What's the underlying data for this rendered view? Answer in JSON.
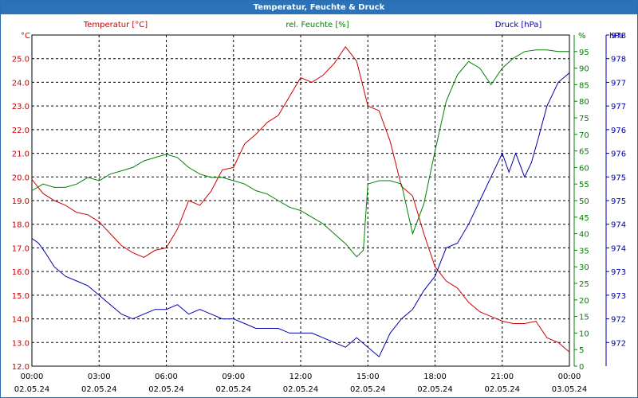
{
  "window": {
    "title": "Temperatur, Feuchte & Druck"
  },
  "colors": {
    "temperature": "#cc0000",
    "humidity": "#008000",
    "pressure": "#0000aa",
    "grid": "#000000",
    "titlebar": "#2b72b8"
  },
  "chart_data": {
    "type": "line",
    "grid": true,
    "legend": "top",
    "x": {
      "range": [
        "02.05.24 00:00",
        "03.05.24 00:00"
      ],
      "ticks": [
        {
          "time": "00:00",
          "date": "02.05.24"
        },
        {
          "time": "03:00",
          "date": "02.05.24"
        },
        {
          "time": "06:00",
          "date": "02.05.24"
        },
        {
          "time": "09:00",
          "date": "02.05.24"
        },
        {
          "time": "12:00",
          "date": "02.05.24"
        },
        {
          "time": "15:00",
          "date": "02.05.24"
        },
        {
          "time": "18:00",
          "date": "02.05.24"
        },
        {
          "time": "21:00",
          "date": "02.05.24"
        },
        {
          "time": "00:00",
          "date": "03.05.24"
        }
      ]
    },
    "axes": {
      "left": {
        "unit": "°C",
        "min": 12.0,
        "max": 26.0,
        "ticks": [
          "12.0",
          "13.0",
          "14.0",
          "15.0",
          "16.0",
          "17.0",
          "18.0",
          "19.0",
          "20.0",
          "21.0",
          "22.0",
          "23.0",
          "24.0",
          "25.0"
        ]
      },
      "right1": {
        "unit": "%",
        "min": 0,
        "max": 100,
        "ticks": [
          "0",
          "5",
          "10",
          "15",
          "20",
          "25",
          "30",
          "35",
          "40",
          "45",
          "50",
          "55",
          "60",
          "65",
          "70",
          "75",
          "80",
          "85",
          "90",
          "95"
        ]
      },
      "right2": {
        "unit": "hPa",
        "min": 971.5,
        "max": 978.5,
        "ticks": [
          "972",
          "972",
          "973",
          "973",
          "974",
          "974",
          "975",
          "975",
          "976",
          "976",
          "977",
          "977",
          "978",
          "978"
        ]
      }
    },
    "series": [
      {
        "name": "Temperatur [°C]",
        "axis": "left",
        "color": "#cc0000",
        "x": [
          0,
          0.25,
          0.5,
          1,
          1.5,
          2,
          2.5,
          3,
          3.5,
          4,
          4.5,
          5,
          5.5,
          6,
          6.5,
          7,
          7.5,
          8,
          8.5,
          9,
          9.5,
          10,
          10.5,
          11,
          11.5,
          12,
          12.5,
          13,
          13.5,
          14,
          14.5,
          15,
          15.5,
          16,
          16.5,
          17,
          17.5,
          18,
          18.5,
          19,
          19.5,
          20,
          20.5,
          21,
          21.5,
          22,
          22.5,
          23,
          23.5,
          24
        ],
        "y": [
          19.9,
          19.6,
          19.3,
          19.0,
          18.8,
          18.5,
          18.4,
          18.1,
          17.6,
          17.1,
          16.8,
          16.6,
          16.9,
          17.0,
          17.8,
          19.0,
          18.8,
          19.4,
          20.3,
          20.4,
          21.4,
          21.8,
          22.3,
          22.6,
          23.4,
          24.2,
          24.0,
          24.3,
          24.8,
          25.5,
          24.9,
          23.0,
          22.8,
          21.5,
          19.6,
          19.2,
          17.6,
          16.2,
          15.6,
          15.3,
          14.7,
          14.3,
          14.1,
          13.9,
          13.8,
          13.8,
          13.9,
          13.2,
          13.0,
          12.6
        ]
      },
      {
        "name": "rel. Feuchte [%]",
        "axis": "right1",
        "color": "#008000",
        "x": [
          0,
          0.5,
          1,
          1.5,
          2,
          2.5,
          3,
          3.5,
          4,
          4.5,
          5,
          5.5,
          6,
          6.5,
          7,
          7.5,
          8,
          8.5,
          9,
          9.5,
          10,
          10.5,
          11,
          11.5,
          12,
          12.5,
          13,
          13.5,
          14,
          14.5,
          14.8,
          15,
          15.5,
          16,
          16.5,
          17,
          17.5,
          18,
          18.5,
          19,
          19.5,
          20,
          20.5,
          21,
          21.5,
          22,
          22.5,
          23,
          23.5,
          24
        ],
        "y": [
          53,
          55,
          54,
          54,
          55,
          57,
          56,
          58,
          59,
          60,
          62,
          63,
          64,
          63,
          60,
          58,
          57,
          57,
          56,
          55,
          53,
          52,
          50,
          48,
          47,
          45,
          43,
          40,
          37,
          33,
          35,
          55,
          56,
          56,
          55,
          40,
          49,
          65,
          80,
          88,
          92,
          90,
          85,
          90,
          93,
          95,
          95.5,
          95.5,
          95,
          95
        ]
      },
      {
        "name": "Druck [hPa]",
        "axis": "right2",
        "color": "#0000aa",
        "x": [
          0,
          0.3,
          0.6,
          1,
          1.5,
          2,
          2.5,
          3,
          3.5,
          4,
          4.5,
          5,
          5.5,
          6,
          6.5,
          7,
          7.5,
          8,
          8.5,
          9,
          9.5,
          10,
          10.5,
          11,
          11.5,
          12,
          12.5,
          13,
          13.5,
          14,
          14.5,
          15,
          15.5,
          16,
          16.5,
          17,
          17.5,
          18,
          18.5,
          19,
          19.5,
          20,
          20.5,
          21,
          21.3,
          21.6,
          22,
          22.3,
          22.6,
          23,
          23.5,
          24
        ],
        "y": [
          974.2,
          974.1,
          973.9,
          973.6,
          973.4,
          973.3,
          973.2,
          973.0,
          972.8,
          972.6,
          972.5,
          972.6,
          972.7,
          972.7,
          972.8,
          972.6,
          972.7,
          972.6,
          972.5,
          972.5,
          972.4,
          972.3,
          972.3,
          972.3,
          972.2,
          972.2,
          972.2,
          972.1,
          972.0,
          971.9,
          972.1,
          971.9,
          971.7,
          972.2,
          972.5,
          972.7,
          973.1,
          973.4,
          974.0,
          974.1,
          974.5,
          975.0,
          975.5,
          976.0,
          975.6,
          976.0,
          975.5,
          975.8,
          976.3,
          977.0,
          977.5,
          977.7
        ]
      }
    ]
  }
}
